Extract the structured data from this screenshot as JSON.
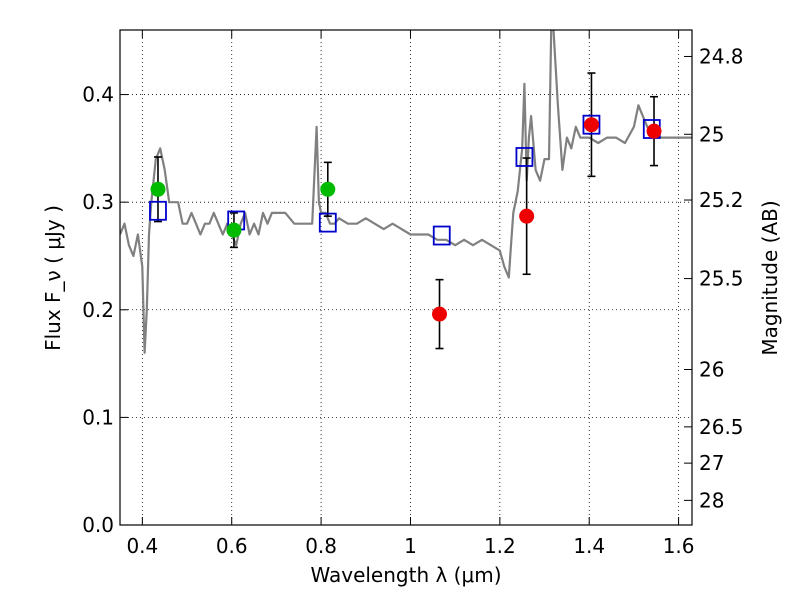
{
  "chart_data": {
    "type": "scatter",
    "xlabel": "Wavelength  λ (μm)",
    "ylabel": "Flux  F_ν  ( μJy )",
    "ylabel_right": "Magnitude (AB)",
    "xlim": [
      0.35,
      1.63
    ],
    "ylim": [
      0.0,
      0.46
    ],
    "x_ticks": [
      0.4,
      0.6,
      0.8,
      1.0,
      1.2,
      1.4,
      1.6
    ],
    "x_tick_labels": [
      "0.4",
      "0.6",
      "0.8",
      "1",
      "1.2",
      "1.4",
      "1.6"
    ],
    "y_ticks": [
      0.0,
      0.1,
      0.2,
      0.3,
      0.4
    ],
    "y_tick_labels": [
      "0.0",
      "0.1",
      "0.2",
      "0.3",
      "0.4"
    ],
    "right_ticks": [
      {
        "flux": 0.4354,
        "label": "24.8"
      },
      {
        "flux": 0.3631,
        "label": "25"
      },
      {
        "flux": 0.302,
        "label": "25.2"
      },
      {
        "flux": 0.229,
        "label": "25.5"
      },
      {
        "flux": 0.1445,
        "label": "26"
      },
      {
        "flux": 0.0912,
        "label": "26.5"
      },
      {
        "flux": 0.0575,
        "label": "27"
      },
      {
        "flux": 0.0229,
        "label": "28"
      }
    ],
    "grid": true,
    "colors": {
      "spectrum": "#808080",
      "model_box": "#0000cc",
      "green_point": "#00bb00",
      "red_point": "#ee0000",
      "errorbar": "#000000"
    },
    "spectrum": {
      "x": [
        0.35,
        0.36,
        0.37,
        0.38,
        0.39,
        0.4,
        0.405,
        0.41,
        0.415,
        0.42,
        0.43,
        0.44,
        0.45,
        0.46,
        0.47,
        0.48,
        0.49,
        0.5,
        0.51,
        0.52,
        0.53,
        0.54,
        0.55,
        0.56,
        0.57,
        0.58,
        0.59,
        0.6,
        0.61,
        0.62,
        0.63,
        0.64,
        0.65,
        0.66,
        0.67,
        0.68,
        0.69,
        0.7,
        0.72,
        0.74,
        0.76,
        0.78,
        0.79,
        0.795,
        0.8,
        0.81,
        0.82,
        0.83,
        0.84,
        0.86,
        0.88,
        0.9,
        0.92,
        0.94,
        0.96,
        0.98,
        1.0,
        1.02,
        1.04,
        1.06,
        1.08,
        1.1,
        1.12,
        1.14,
        1.16,
        1.18,
        1.2,
        1.21,
        1.22,
        1.225,
        1.23,
        1.24,
        1.25,
        1.255,
        1.26,
        1.265,
        1.27,
        1.28,
        1.29,
        1.3,
        1.31,
        1.315,
        1.32,
        1.33,
        1.34,
        1.35,
        1.36,
        1.37,
        1.38,
        1.4,
        1.42,
        1.44,
        1.46,
        1.48,
        1.5,
        1.51,
        1.52,
        1.53,
        1.54,
        1.56,
        1.58,
        1.6,
        1.62,
        1.63
      ],
      "y": [
        0.27,
        0.28,
        0.26,
        0.25,
        0.27,
        0.24,
        0.16,
        0.2,
        0.27,
        0.3,
        0.34,
        0.35,
        0.33,
        0.3,
        0.3,
        0.3,
        0.28,
        0.28,
        0.29,
        0.28,
        0.27,
        0.28,
        0.28,
        0.29,
        0.28,
        0.27,
        0.28,
        0.27,
        0.26,
        0.28,
        0.29,
        0.27,
        0.28,
        0.27,
        0.29,
        0.28,
        0.29,
        0.29,
        0.29,
        0.28,
        0.28,
        0.28,
        0.37,
        0.3,
        0.29,
        0.29,
        0.28,
        0.28,
        0.285,
        0.28,
        0.28,
        0.285,
        0.28,
        0.275,
        0.28,
        0.275,
        0.27,
        0.27,
        0.27,
        0.265,
        0.265,
        0.26,
        0.265,
        0.26,
        0.265,
        0.26,
        0.255,
        0.24,
        0.23,
        0.26,
        0.29,
        0.31,
        0.35,
        0.41,
        0.32,
        0.36,
        0.38,
        0.33,
        0.32,
        0.34,
        0.34,
        0.46,
        0.46,
        0.39,
        0.33,
        0.36,
        0.35,
        0.37,
        0.36,
        0.36,
        0.355,
        0.36,
        0.36,
        0.355,
        0.37,
        0.39,
        0.38,
        0.37,
        0.365,
        0.36,
        0.36,
        0.36,
        0.36,
        0.36
      ]
    },
    "model_boxes": {
      "x": [
        0.435,
        0.61,
        0.815,
        1.07,
        1.255,
        1.405,
        1.54
      ],
      "y": [
        0.292,
        0.283,
        0.281,
        0.269,
        0.342,
        0.372,
        0.368
      ]
    },
    "green_points": {
      "x": [
        0.435,
        0.605,
        0.815
      ],
      "y": [
        0.312,
        0.274,
        0.312
      ],
      "yerr": [
        0.03,
        0.016,
        0.025
      ]
    },
    "red_points": {
      "x": [
        1.065,
        1.26,
        1.405,
        1.545
      ],
      "y": [
        0.196,
        0.287,
        0.372,
        0.366
      ],
      "yerr": [
        0.032,
        0.054,
        0.048,
        0.032
      ]
    }
  }
}
